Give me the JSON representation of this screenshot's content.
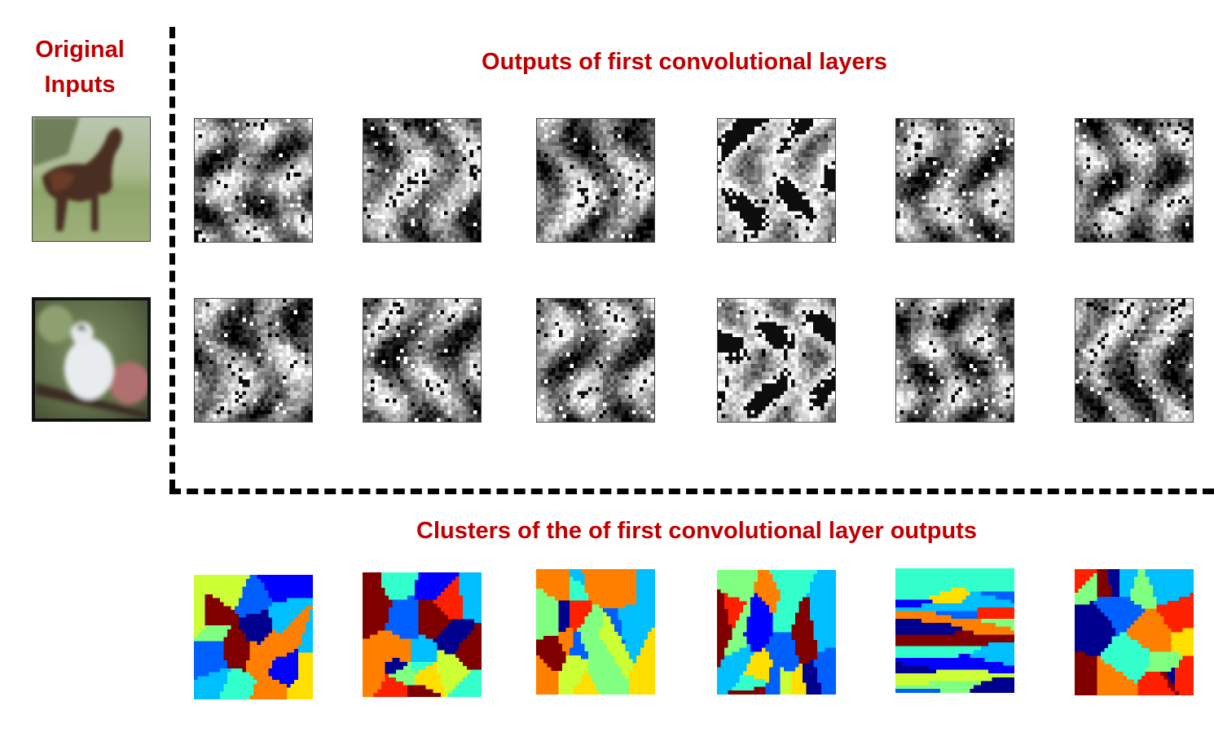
{
  "titles": {
    "original_inputs": "Original Inputs",
    "conv_outputs": "Outputs of first convolutional layers",
    "clusters": "Clusters of the of first convolutional layer outputs"
  },
  "inputs": [
    "horse-photo",
    "bird-photo"
  ],
  "colors": {
    "title": "#c00000",
    "jet": [
      "#00008f",
      "#0000ff",
      "#0060ff",
      "#00bfff",
      "#33ffcc",
      "#80ff80",
      "#ccff33",
      "#ffdf00",
      "#ff8000",
      "#ff2000",
      "#800000"
    ]
  }
}
